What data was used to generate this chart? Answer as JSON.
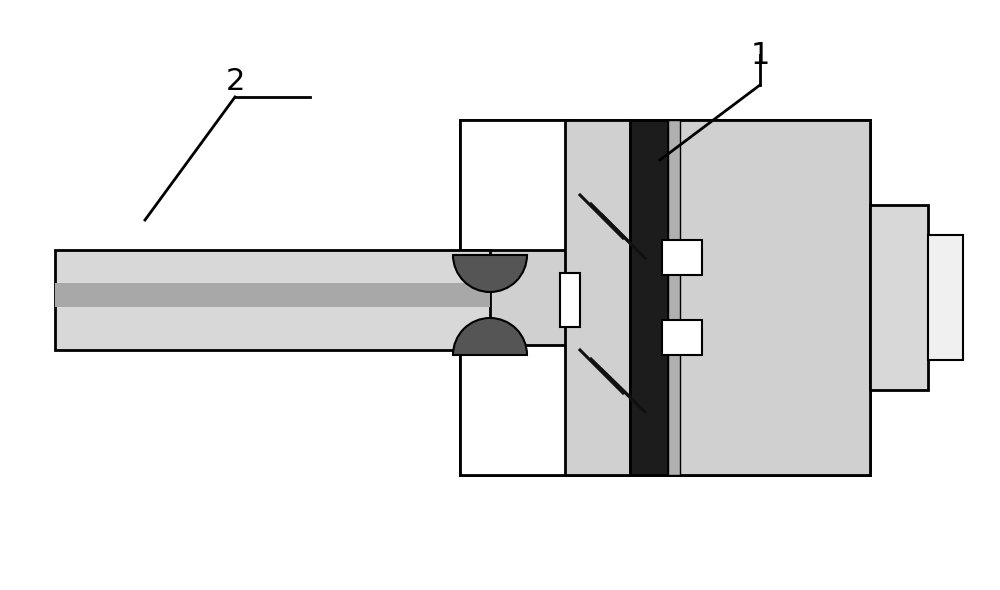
{
  "bg_color": "#ffffff",
  "light_gray": "#d8d8d8",
  "medium_gray": "#a8a8a8",
  "dot_gray": "#d0d0d0",
  "dark_strip": "#1c1c1c",
  "grommet_color": "#555555",
  "white": "#ffffff",
  "black": "#000000",
  "near_white": "#f0f0f0",
  "stripe_gray": "#b0b0b0"
}
